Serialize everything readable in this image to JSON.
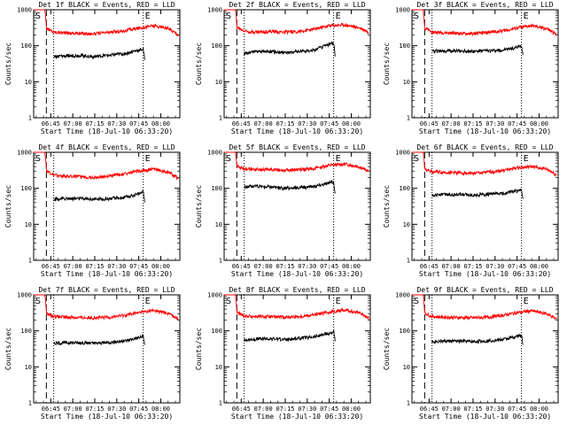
{
  "colors": {
    "events": "#000000",
    "lld": "#ff0000",
    "background": "#ffffff"
  },
  "common": {
    "ylabel": "Counts/sec",
    "xlabel": "Start Time (18-Jul-10 06:33:20)",
    "ylim": [
      1,
      1000
    ],
    "yscale": "log",
    "y_ticks": [
      "1",
      "10",
      "100",
      "1000"
    ],
    "marker_labels": [
      "S",
      "E"
    ]
  },
  "chart_data": [
    {
      "type": "line",
      "title": "Det 1f BLACK = Events, RED = LLD",
      "start_dashed": "06:42:00",
      "start_dotted": "06:47:00",
      "end_dotted": "07:48:00",
      "x_ticks": [
        "06:45",
        "07:00",
        "07:15",
        "07:30",
        "07:45",
        "08:00"
      ],
      "xlim": [
        "06:33:20",
        "08:13:00"
      ],
      "series": [
        {
          "name": "LLD",
          "color": "red",
          "x": [
            "06:33:20",
            "06:38:00",
            "06:41:00",
            "06:42:00",
            "06:47:00",
            "06:55:00",
            "07:05:00",
            "07:15:00",
            "07:25:00",
            "07:35:00",
            "07:45:00",
            "07:55:00",
            "08:05:00",
            "08:12:00"
          ],
          "y": [
            1000,
            1000,
            1000,
            300,
            240,
            230,
            220,
            215,
            235,
            260,
            310,
            360,
            300,
            200
          ]
        },
        {
          "name": "Events",
          "color": "black",
          "x": [
            "06:47:00",
            "06:55:00",
            "07:05:00",
            "07:15:00",
            "07:25:00",
            "07:35:00",
            "07:45:00",
            "07:48:00",
            "07:49:00"
          ],
          "y": [
            50,
            52,
            54,
            50,
            55,
            60,
            75,
            80,
            40
          ]
        }
      ]
    },
    {
      "type": "line",
      "title": "Det 2f BLACK = Events, RED = LLD",
      "start_dashed": "06:42:00",
      "start_dotted": "06:47:00",
      "end_dotted": "07:48:00",
      "x_ticks": [
        "06:45",
        "07:00",
        "07:15",
        "07:30",
        "07:45",
        "08:00"
      ],
      "xlim": [
        "06:33:20",
        "08:13:00"
      ],
      "series": [
        {
          "name": "LLD",
          "color": "red",
          "x": [
            "06:33:20",
            "06:38:00",
            "06:41:00",
            "06:42:00",
            "06:47:00",
            "06:55:00",
            "07:05:00",
            "07:15:00",
            "07:25:00",
            "07:35:00",
            "07:45:00",
            "07:55:00",
            "08:05:00",
            "08:12:00"
          ],
          "y": [
            1000,
            1000,
            1000,
            320,
            260,
            240,
            250,
            240,
            250,
            290,
            360,
            380,
            320,
            240
          ]
        },
        {
          "name": "Events",
          "color": "black",
          "x": [
            "06:47:00",
            "06:55:00",
            "07:05:00",
            "07:15:00",
            "07:25:00",
            "07:35:00",
            "07:45:00",
            "07:48:00",
            "07:49:00"
          ],
          "y": [
            60,
            70,
            70,
            65,
            70,
            75,
            110,
            120,
            50
          ]
        }
      ]
    },
    {
      "type": "line",
      "title": "Det 3f BLACK = Events, RED = LLD",
      "start_dashed": "06:42:00",
      "start_dotted": "06:47:00",
      "end_dotted": "07:48:00",
      "x_ticks": [
        "06:45",
        "07:00",
        "07:15",
        "07:30",
        "07:45",
        "08:00"
      ],
      "xlim": [
        "06:33:20",
        "08:13:00"
      ],
      "series": [
        {
          "name": "LLD",
          "color": "red",
          "x": [
            "06:33:20",
            "06:38:00",
            "06:41:00",
            "06:42:00",
            "06:47:00",
            "06:55:00",
            "07:05:00",
            "07:15:00",
            "07:25:00",
            "07:35:00",
            "07:45:00",
            "07:55:00",
            "08:05:00",
            "08:12:00"
          ],
          "y": [
            1000,
            1000,
            1000,
            300,
            240,
            230,
            220,
            215,
            235,
            260,
            310,
            360,
            300,
            200
          ]
        },
        {
          "name": "Events",
          "color": "black",
          "x": [
            "06:47:00",
            "06:55:00",
            "07:05:00",
            "07:15:00",
            "07:25:00",
            "07:35:00",
            "07:45:00",
            "07:48:00",
            "07:49:00"
          ],
          "y": [
            70,
            72,
            72,
            70,
            72,
            75,
            90,
            100,
            55
          ]
        }
      ]
    },
    {
      "type": "line",
      "title": "Det 4f BLACK = Events, RED = LLD",
      "start_dashed": "06:42:00",
      "start_dotted": "06:47:00",
      "end_dotted": "07:48:00",
      "x_ticks": [
        "06:45",
        "07:00",
        "07:15",
        "07:30",
        "07:45",
        "08:00"
      ],
      "xlim": [
        "06:33:20",
        "08:13:00"
      ],
      "series": [
        {
          "name": "LLD",
          "color": "red",
          "x": [
            "06:33:20",
            "06:38:00",
            "06:41:00",
            "06:42:00",
            "06:47:00",
            "06:55:00",
            "07:05:00",
            "07:15:00",
            "07:25:00",
            "07:35:00",
            "07:45:00",
            "07:55:00",
            "08:05:00",
            "08:12:00"
          ],
          "y": [
            1000,
            1000,
            1000,
            300,
            230,
            220,
            210,
            200,
            220,
            250,
            300,
            340,
            280,
            190
          ]
        },
        {
          "name": "Events",
          "color": "black",
          "x": [
            "06:47:00",
            "06:55:00",
            "07:05:00",
            "07:15:00",
            "07:25:00",
            "07:35:00",
            "07:45:00",
            "07:48:00",
            "07:49:00"
          ],
          "y": [
            50,
            52,
            52,
            50,
            52,
            55,
            70,
            80,
            40
          ]
        }
      ]
    },
    {
      "type": "line",
      "title": "Det 5f BLACK = Events, RED = LLD",
      "start_dashed": "06:42:00",
      "start_dotted": "06:47:00",
      "end_dotted": "07:48:00",
      "x_ticks": [
        "06:45",
        "07:00",
        "07:15",
        "07:30",
        "07:45",
        "08:00"
      ],
      "xlim": [
        "06:33:20",
        "08:13:00"
      ],
      "series": [
        {
          "name": "LLD",
          "color": "red",
          "x": [
            "06:33:20",
            "06:38:00",
            "06:41:00",
            "06:42:00",
            "06:47:00",
            "06:55:00",
            "07:05:00",
            "07:15:00",
            "07:25:00",
            "07:35:00",
            "07:45:00",
            "07:55:00",
            "08:05:00",
            "08:12:00"
          ],
          "y": [
            1000,
            1000,
            1000,
            420,
            350,
            330,
            340,
            320,
            330,
            360,
            430,
            470,
            400,
            290
          ]
        },
        {
          "name": "Events",
          "color": "black",
          "x": [
            "06:47:00",
            "06:55:00",
            "07:05:00",
            "07:15:00",
            "07:25:00",
            "07:35:00",
            "07:45:00",
            "07:48:00",
            "07:49:00"
          ],
          "y": [
            110,
            115,
            110,
            100,
            105,
            115,
            140,
            150,
            70
          ]
        }
      ]
    },
    {
      "type": "line",
      "title": "Det 6f BLACK = Events, RED = LLD",
      "start_dashed": "06:42:00",
      "start_dotted": "06:47:00",
      "end_dotted": "07:48:00",
      "x_ticks": [
        "06:45",
        "07:00",
        "07:15",
        "07:30",
        "07:45",
        "08:00"
      ],
      "xlim": [
        "06:33:20",
        "08:13:00"
      ],
      "series": [
        {
          "name": "LLD",
          "color": "red",
          "x": [
            "06:33:20",
            "06:38:00",
            "06:41:00",
            "06:42:00",
            "06:47:00",
            "06:55:00",
            "07:05:00",
            "07:15:00",
            "07:25:00",
            "07:35:00",
            "07:45:00",
            "07:55:00",
            "08:05:00",
            "08:12:00"
          ],
          "y": [
            1000,
            1000,
            1000,
            350,
            290,
            280,
            270,
            260,
            280,
            310,
            370,
            400,
            340,
            230
          ]
        },
        {
          "name": "Events",
          "color": "black",
          "x": [
            "06:47:00",
            "06:55:00",
            "07:05:00",
            "07:15:00",
            "07:25:00",
            "07:35:00",
            "07:45:00",
            "07:48:00",
            "07:49:00"
          ],
          "y": [
            65,
            68,
            68,
            65,
            68,
            72,
            85,
            90,
            50
          ]
        }
      ]
    },
    {
      "type": "line",
      "title": "Det 7f BLACK = Events, RED = LLD",
      "start_dashed": "06:42:00",
      "start_dotted": "06:47:00",
      "end_dotted": "07:48:00",
      "x_ticks": [
        "06:45",
        "07:00",
        "07:15",
        "07:30",
        "07:45",
        "08:00"
      ],
      "xlim": [
        "06:33:20",
        "08:13:00"
      ],
      "series": [
        {
          "name": "LLD",
          "color": "red",
          "x": [
            "06:33:20",
            "06:38:00",
            "06:41:00",
            "06:42:00",
            "06:47:00",
            "06:55:00",
            "07:05:00",
            "07:15:00",
            "07:25:00",
            "07:35:00",
            "07:45:00",
            "07:55:00",
            "08:05:00",
            "08:12:00"
          ],
          "y": [
            1000,
            1000,
            1000,
            300,
            250,
            240,
            235,
            230,
            240,
            270,
            320,
            370,
            310,
            210
          ]
        },
        {
          "name": "Events",
          "color": "black",
          "x": [
            "06:47:00",
            "06:55:00",
            "07:05:00",
            "07:15:00",
            "07:25:00",
            "07:35:00",
            "07:45:00",
            "07:48:00",
            "07:49:00"
          ],
          "y": [
            45,
            47,
            47,
            45,
            48,
            52,
            65,
            70,
            40
          ]
        }
      ]
    },
    {
      "type": "line",
      "title": "Det 8f BLACK = Events, RED = LLD",
      "start_dashed": "06:42:00",
      "start_dotted": "06:47:00",
      "end_dotted": "07:48:00",
      "x_ticks": [
        "06:45",
        "07:00",
        "07:15",
        "07:30",
        "07:45",
        "08:00"
      ],
      "xlim": [
        "06:33:20",
        "08:13:00"
      ],
      "series": [
        {
          "name": "LLD",
          "color": "red",
          "x": [
            "06:33:20",
            "06:38:00",
            "06:41:00",
            "06:42:00",
            "06:47:00",
            "06:55:00",
            "07:05:00",
            "07:15:00",
            "07:25:00",
            "07:35:00",
            "07:45:00",
            "07:55:00",
            "08:05:00",
            "08:12:00"
          ],
          "y": [
            1000,
            1000,
            1000,
            320,
            260,
            250,
            245,
            240,
            250,
            280,
            330,
            380,
            320,
            220
          ]
        },
        {
          "name": "Events",
          "color": "black",
          "x": [
            "06:47:00",
            "06:55:00",
            "07:05:00",
            "07:15:00",
            "07:25:00",
            "07:35:00",
            "07:45:00",
            "07:48:00",
            "07:49:00"
          ],
          "y": [
            55,
            60,
            60,
            58,
            62,
            70,
            85,
            95,
            50
          ]
        }
      ]
    },
    {
      "type": "line",
      "title": "Det 9f BLACK = Events, RED = LLD",
      "start_dashed": "06:42:00",
      "start_dotted": "06:47:00",
      "end_dotted": "07:48:00",
      "x_ticks": [
        "06:45",
        "07:00",
        "07:15",
        "07:30",
        "07:45",
        "08:00"
      ],
      "xlim": [
        "06:33:20",
        "08:13:00"
      ],
      "series": [
        {
          "name": "LLD",
          "color": "red",
          "x": [
            "06:33:20",
            "06:38:00",
            "06:41:00",
            "06:42:00",
            "06:47:00",
            "06:55:00",
            "07:05:00",
            "07:15:00",
            "07:25:00",
            "07:35:00",
            "07:45:00",
            "07:55:00",
            "08:05:00",
            "08:12:00"
          ],
          "y": [
            1000,
            1000,
            1000,
            310,
            250,
            240,
            235,
            230,
            240,
            270,
            320,
            360,
            300,
            210
          ]
        },
        {
          "name": "Events",
          "color": "black",
          "x": [
            "06:47:00",
            "06:55:00",
            "07:05:00",
            "07:15:00",
            "07:25:00",
            "07:35:00",
            "07:45:00",
            "07:48:00",
            "07:49:00"
          ],
          "y": [
            50,
            52,
            52,
            50,
            53,
            57,
            70,
            75,
            40
          ]
        }
      ]
    }
  ]
}
